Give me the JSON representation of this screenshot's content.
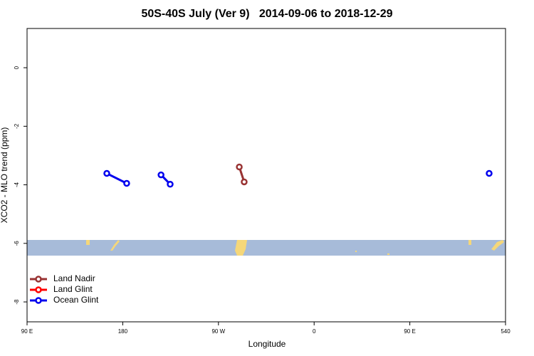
{
  "chart_data": {
    "type": "line",
    "title": "50S-40S July (Ver 9)   2014-09-06 to 2018-12-29",
    "xlabel": "Longitude",
    "ylabel": "XCO2 - MLO trend (ppm)",
    "xlim": [
      90,
      540
    ],
    "xticks": [
      {
        "value": 90,
        "label": "90 E"
      },
      180,
      {
        "value": 270,
        "label": "90 W"
      },
      {
        "value": 360,
        "label": "0"
      },
      {
        "value": 450,
        "label": "90 E"
      },
      540
    ],
    "ylim": [
      -8.68,
      1.34
    ],
    "yticks": [
      -8,
      -6,
      -4,
      -2,
      0
    ],
    "legend": "bottomleft",
    "series": [
      {
        "name": "Land Nadir",
        "color": "#993333",
        "x": [
          289.6,
          294.2
        ],
        "values": [
          -3.39,
          -3.9
        ]
      },
      {
        "name": "Land Glint",
        "color": "#ff0000",
        "x": [],
        "values": []
      },
      {
        "name": "Ocean Glint",
        "color": "#0000ee",
        "x": [
          165,
          183.7,
          null,
          216,
          224.6,
          null,
          524.6
        ],
        "values": [
          -3.61,
          -3.95,
          null,
          -3.66,
          -3.98,
          null,
          -3.61
        ]
      }
    ]
  }
}
